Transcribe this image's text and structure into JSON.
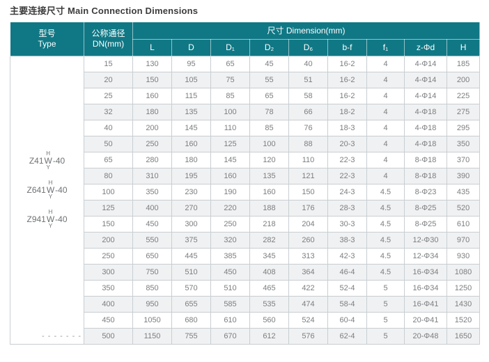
{
  "title": "主要连接尺寸 Main Connection Dimensions",
  "colors": {
    "header_bg": "#107885",
    "header_text": "#ffffff",
    "row_stripe": "#f0f1f2",
    "border": "#c9ced2",
    "cell_text": "#7b7e81",
    "title_text": "#3c3c3c",
    "model_text": "#6f7275"
  },
  "table": {
    "header": {
      "type_zh": "型号",
      "type_en": "Type",
      "dn_zh": "公称通径",
      "dn_en": "DN(mm)",
      "dimension": "尺寸 Dimension(mm)"
    },
    "columns": [
      "L",
      "D",
      "D₁",
      "D₂",
      "D₆",
      "b-f",
      "f₁",
      "z-Φd",
      "H"
    ],
    "models": [
      {
        "prefix": "Z41",
        "top": "H",
        "mid": "W",
        "bottom": "Y",
        "suffix": "-40"
      },
      {
        "prefix": "Z641",
        "top": "H",
        "mid": "W",
        "bottom": "Y",
        "suffix": "-40"
      },
      {
        "prefix": "Z941",
        "top": "H",
        "mid": "W",
        "bottom": "Y",
        "suffix": "-40"
      }
    ],
    "continuation_mark": "- - - - - - -",
    "rows": [
      [
        "15",
        "130",
        "95",
        "65",
        "45",
        "40",
        "16-2",
        "4",
        "4-Φ14",
        "185"
      ],
      [
        "20",
        "150",
        "105",
        "75",
        "55",
        "51",
        "16-2",
        "4",
        "4-Φ14",
        "200"
      ],
      [
        "25",
        "160",
        "115",
        "85",
        "65",
        "58",
        "16-2",
        "4",
        "4-Φ14",
        "225"
      ],
      [
        "32",
        "180",
        "135",
        "100",
        "78",
        "66",
        "18-2",
        "4",
        "4-Φ18",
        "275"
      ],
      [
        "40",
        "200",
        "145",
        "110",
        "85",
        "76",
        "18-3",
        "4",
        "4-Φ18",
        "295"
      ],
      [
        "50",
        "250",
        "160",
        "125",
        "100",
        "88",
        "20-3",
        "4",
        "4-Φ18",
        "350"
      ],
      [
        "65",
        "280",
        "180",
        "145",
        "120",
        "110",
        "22-3",
        "4",
        "8-Φ18",
        "370"
      ],
      [
        "80",
        "310",
        "195",
        "160",
        "135",
        "121",
        "22-3",
        "4",
        "8-Φ18",
        "390"
      ],
      [
        "100",
        "350",
        "230",
        "190",
        "160",
        "150",
        "24-3",
        "4.5",
        "8-Φ23",
        "435"
      ],
      [
        "125",
        "400",
        "270",
        "220",
        "188",
        "176",
        "28-3",
        "4.5",
        "8-Φ25",
        "520"
      ],
      [
        "150",
        "450",
        "300",
        "250",
        "218",
        "204",
        "30-3",
        "4.5",
        "8-Φ25",
        "610"
      ],
      [
        "200",
        "550",
        "375",
        "320",
        "282",
        "260",
        "38-3",
        "4.5",
        "12-Φ30",
        "970"
      ],
      [
        "250",
        "650",
        "445",
        "385",
        "345",
        "313",
        "42-3",
        "4.5",
        "12-Φ34",
        "930"
      ],
      [
        "300",
        "750",
        "510",
        "450",
        "408",
        "364",
        "46-4",
        "4.5",
        "16-Φ34",
        "1080"
      ],
      [
        "350",
        "850",
        "570",
        "510",
        "465",
        "422",
        "52-4",
        "5",
        "16-Φ34",
        "1250"
      ],
      [
        "400",
        "950",
        "655",
        "585",
        "535",
        "474",
        "58-4",
        "5",
        "16-Φ41",
        "1430"
      ],
      [
        "450",
        "1050",
        "680",
        "610",
        "560",
        "524",
        "60-4",
        "5",
        "20-Φ41",
        "1520"
      ],
      [
        "500",
        "1150",
        "755",
        "670",
        "612",
        "576",
        "62-4",
        "5",
        "20-Φ48",
        "1650"
      ]
    ]
  }
}
